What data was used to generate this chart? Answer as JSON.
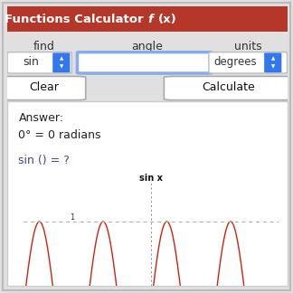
{
  "title_text": "Trigonometric Functions Calculator ",
  "title_f": "f",
  "title_x": "(x)",
  "title_bg": "#b5372a",
  "title_color": "#ffffff",
  "bg_color": "#e0e0e0",
  "panel_bg": "#ffffff",
  "find_label": "find",
  "angle_label": "angle",
  "units_label": "units",
  "find_value": "sin",
  "units_value": "degrees",
  "clear_btn": "Clear",
  "calc_btn": "Calculate",
  "answer_line1": "Answer:",
  "answer_line2": "0° = 0 radians",
  "answer_line3": "sin () = ?",
  "graph_title": "sin x",
  "graph_line_color": "#cc2211",
  "graph_dashed_color": "#aaaaaa",
  "axis_color": "#888888",
  "dropdown_bg": "#3377ee",
  "input_border": "#88aaee",
  "text_color": "#333333",
  "answer_text_color": "#222222",
  "sin_text_color": "#444488"
}
